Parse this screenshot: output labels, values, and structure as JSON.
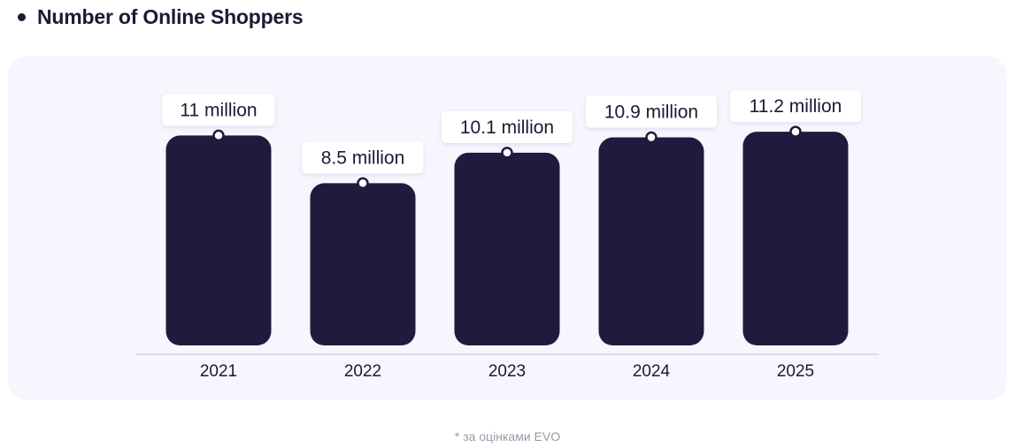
{
  "heading": {
    "title": "Number of Online Shoppers"
  },
  "chart_data": {
    "type": "bar",
    "title": "Number of Online Shoppers",
    "categories": [
      "2021",
      "2022",
      "2023",
      "2024",
      "2025"
    ],
    "values": [
      11,
      8.5,
      10.1,
      10.9,
      11.2
    ],
    "labels": [
      "11 million",
      "8.5 million",
      "10.1 million",
      "10.9 million",
      "11.2 million"
    ],
    "unit": "million",
    "xlabel": "",
    "ylabel": "",
    "grid": false,
    "legend": "none"
  },
  "footnote": {
    "text": "* за оцінками EVO"
  },
  "colors": {
    "bar": "#201a3e",
    "card_background": "#f7f5fe",
    "axis_line": "#d6d2e6",
    "label_box": "#ffffff",
    "text": "#1c1a33",
    "footnote_text": "#9a98a8"
  }
}
